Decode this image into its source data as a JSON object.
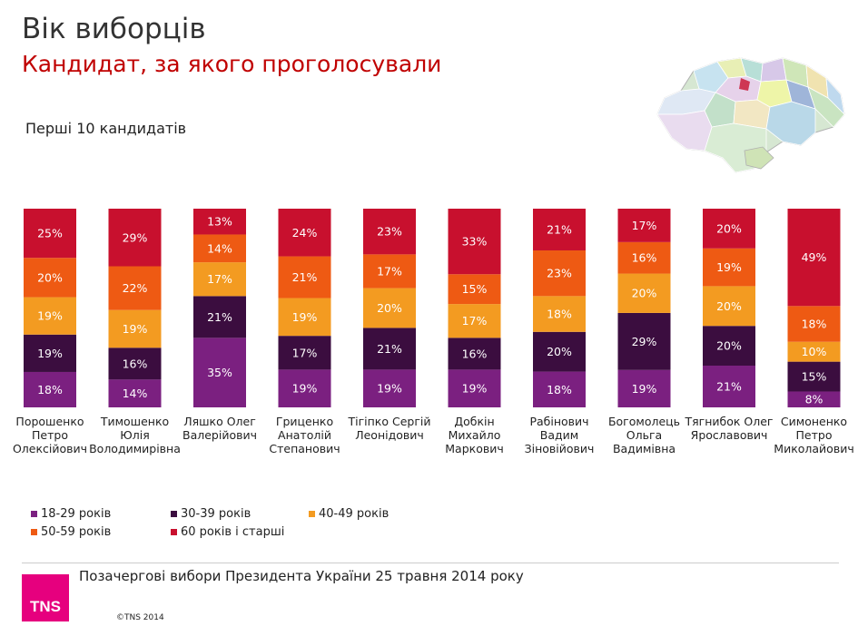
{
  "header": {
    "title": "Вік виборців",
    "subtitle": "Кандидат, за якого проголосували",
    "section_label": "Перші 10 кандидатів"
  },
  "footer": {
    "text": "Позачергові вибори Президента України 25 травня 2014 року",
    "logo": "TNS",
    "copyright": "©TNS 2014"
  },
  "colors": {
    "c18_29": "#7b2080",
    "c30_39": "#3b0d3f",
    "c40_49": "#f39b21",
    "c50_59": "#ee5a13",
    "c60": "#c8102e",
    "title": "#333333",
    "subtitle": "#c00000",
    "logo": "#e6007e"
  },
  "legend": [
    {
      "label": "18-29 років",
      "color": "#7b2080"
    },
    {
      "label": "30-39 років",
      "color": "#3b0d3f"
    },
    {
      "label": "40-49 років",
      "color": "#f39b21"
    },
    {
      "label": "50-59 років",
      "color": "#ee5a13"
    },
    {
      "label": "60 років і старші",
      "color": "#c8102e"
    }
  ],
  "chart_data": {
    "type": "bar",
    "stacked": true,
    "normalized": true,
    "title": "Вік виборців",
    "subtitle": "Кандидат, за якого проголосували",
    "xlabel": "",
    "ylabel": "",
    "unit": "%",
    "categories": [
      [
        "Порошенко",
        "Петро",
        "Олексійович"
      ],
      [
        "Тимошенко",
        "Юлія",
        "Володимирівна"
      ],
      [
        "Ляшко Олег",
        "Валерійович"
      ],
      [
        "Гриценко",
        "Анатолій",
        "Степанович"
      ],
      [
        "Тігіпко Сергій",
        "Леонідович"
      ],
      [
        "Добкін",
        "Михайло",
        "Маркович"
      ],
      [
        "Рабінович",
        "Вадим",
        "Зіновійович"
      ],
      [
        "Богомолець",
        "Ольга",
        "Вадимівна"
      ],
      [
        "Тягнибок Олег",
        "Ярославович"
      ],
      [
        "Симоненко",
        "Петро",
        "Миколайович"
      ]
    ],
    "series": [
      {
        "name": "18-29 років",
        "color": "#7b2080",
        "values": [
          18,
          14,
          35,
          19,
          19,
          19,
          18,
          19,
          21,
          8
        ]
      },
      {
        "name": "30-39 років",
        "color": "#3b0d3f",
        "values": [
          19,
          16,
          21,
          17,
          21,
          16,
          20,
          29,
          20,
          15
        ]
      },
      {
        "name": "40-49 років",
        "color": "#f39b21",
        "values": [
          19,
          19,
          17,
          19,
          20,
          17,
          18,
          20,
          20,
          10
        ]
      },
      {
        "name": "50-59 років",
        "color": "#ee5a13",
        "values": [
          20,
          22,
          14,
          21,
          17,
          15,
          23,
          16,
          19,
          18
        ]
      },
      {
        "name": "60 років і старші",
        "color": "#c8102e",
        "values": [
          25,
          29,
          13,
          24,
          23,
          33,
          21,
          17,
          20,
          49
        ]
      }
    ]
  }
}
